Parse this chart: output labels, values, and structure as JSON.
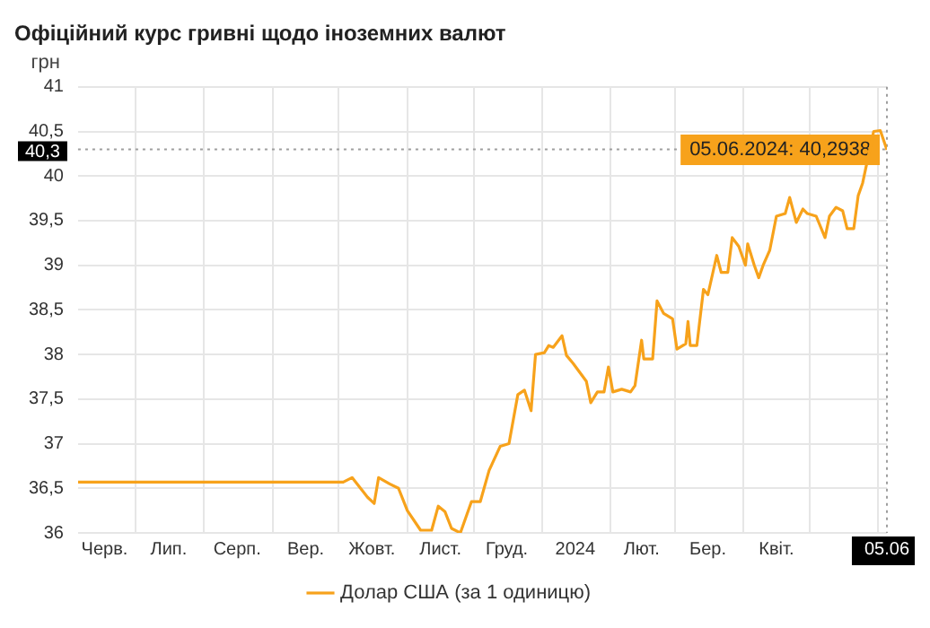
{
  "chart_data": {
    "type": "line",
    "title": "Офіційний курс гривні щодо іноземних валют",
    "ylabel": "грн",
    "xlim": [
      "2023-06-05",
      "2024-06-05"
    ],
    "xticks": [
      {
        "value": "2023-06-17",
        "label": "Черв."
      },
      {
        "value": "2023-07-01",
        "label": null
      },
      {
        "value": "2023-07-16",
        "label": "Лип."
      },
      {
        "value": "2023-08-01",
        "label": null
      },
      {
        "value": "2023-08-16",
        "label": "Серп."
      },
      {
        "value": "2023-09-01",
        "label": null
      },
      {
        "value": "2023-09-16",
        "label": "Вер."
      },
      {
        "value": "2023-10-01",
        "label": null
      },
      {
        "value": "2023-10-16",
        "label": "Жовт."
      },
      {
        "value": "2023-11-01",
        "label": null
      },
      {
        "value": "2023-11-16",
        "label": "Лист."
      },
      {
        "value": "2023-12-01",
        "label": null
      },
      {
        "value": "2023-12-16",
        "label": "Груд."
      },
      {
        "value": "2024-01-01",
        "label": null
      },
      {
        "value": "2024-01-16",
        "label": "2024"
      },
      {
        "value": "2024-02-01",
        "label": null
      },
      {
        "value": "2024-02-15",
        "label": "Лют."
      },
      {
        "value": "2024-03-01",
        "label": null
      },
      {
        "value": "2024-03-16",
        "label": "Бер."
      },
      {
        "value": "2024-04-01",
        "label": null
      },
      {
        "value": "2024-04-16",
        "label": "Квіт."
      },
      {
        "value": "2024-05-01",
        "label": null
      },
      {
        "value": "2024-06-01",
        "label": null
      },
      {
        "value": "2024-06-05",
        "label": "05.06"
      }
    ],
    "ylim": [
      36,
      41
    ],
    "yticks": [
      {
        "value": 36,
        "label": "36"
      },
      {
        "value": 36.5,
        "label": "36,5"
      },
      {
        "value": 37,
        "label": "37"
      },
      {
        "value": 37.5,
        "label": "37,5"
      },
      {
        "value": 38,
        "label": "38"
      },
      {
        "value": 38.5,
        "label": "38,5"
      },
      {
        "value": 39,
        "label": "39"
      },
      {
        "value": 39.5,
        "label": "39,5"
      },
      {
        "value": 40,
        "label": "40"
      },
      {
        "value": 40.5,
        "label": "40,5"
      },
      {
        "value": 41,
        "label": "41"
      }
    ],
    "grid": true,
    "legend": "bottom",
    "marker": "none",
    "line_style": "solid",
    "series": [
      {
        "name": "Долар США (за 1 одиницю)",
        "color": "#f7a21b",
        "x": [
          "2023-06-05",
          "2023-10-03",
          "2023-10-07",
          "2023-10-14",
          "2023-10-17",
          "2023-10-19",
          "2023-10-24",
          "2023-10-28",
          "2023-11-01",
          "2023-11-07",
          "2023-11-12",
          "2023-11-15",
          "2023-11-18",
          "2023-11-21",
          "2023-11-25",
          "2023-11-30",
          "2023-12-04",
          "2023-12-08",
          "2023-12-13",
          "2023-12-17",
          "2023-12-21",
          "2023-12-24",
          "2023-12-27",
          "2023-12-29",
          "2024-01-02",
          "2024-01-04",
          "2024-01-06",
          "2024-01-10",
          "2024-01-12",
          "2024-01-15",
          "2024-01-18",
          "2024-01-21",
          "2024-01-23",
          "2024-01-26",
          "2024-01-29",
          "2024-01-31",
          "2024-02-02",
          "2024-02-06",
          "2024-02-10",
          "2024-02-12",
          "2024-02-15",
          "2024-02-16",
          "2024-02-20",
          "2024-02-22",
          "2024-02-25",
          "2024-02-29",
          "2024-03-02",
          "2024-03-06",
          "2024-03-07",
          "2024-03-08",
          "2024-03-11",
          "2024-03-14",
          "2024-03-16",
          "2024-03-20",
          "2024-03-22",
          "2024-03-25",
          "2024-03-27",
          "2024-03-30",
          "2024-04-02",
          "2024-04-03",
          "2024-04-06",
          "2024-04-08",
          "2024-04-10",
          "2024-04-13",
          "2024-04-16",
          "2024-04-20",
          "2024-04-22",
          "2024-04-25",
          "2024-04-28",
          "2024-04-30",
          "2024-05-04",
          "2024-05-08",
          "2024-05-10",
          "2024-05-13",
          "2024-05-16",
          "2024-05-18",
          "2024-05-21",
          "2024-05-23",
          "2024-05-25",
          "2024-05-28",
          "2024-05-30",
          "2024-06-02",
          "2024-06-05"
        ],
        "values": [
          36.57,
          36.57,
          36.62,
          36.4,
          36.33,
          36.62,
          36.55,
          36.5,
          36.25,
          36.03,
          36.03,
          36.3,
          36.24,
          36.05,
          36.0,
          36.35,
          36.35,
          36.7,
          36.97,
          37.0,
          37.55,
          37.6,
          37.37,
          38.0,
          38.02,
          38.1,
          38.08,
          38.21,
          37.99,
          37.9,
          37.8,
          37.7,
          37.46,
          37.58,
          37.58,
          37.86,
          37.58,
          37.61,
          37.58,
          37.65,
          38.16,
          37.95,
          37.95,
          38.6,
          38.46,
          38.4,
          38.06,
          38.12,
          38.37,
          38.1,
          38.1,
          38.73,
          38.67,
          39.11,
          38.92,
          38.92,
          39.31,
          39.21,
          39.0,
          39.24,
          39.0,
          38.86,
          39.0,
          39.17,
          39.55,
          39.58,
          39.76,
          39.48,
          39.63,
          39.58,
          39.55,
          39.31,
          39.55,
          39.65,
          39.61,
          39.41,
          39.41,
          39.78,
          39.92,
          40.27,
          40.5,
          40.51,
          40.2938
        ]
      }
    ],
    "ref_lines": [
      {
        "axis": "y",
        "value": 40.3,
        "label": "40,3",
        "color": "#9e9e9e",
        "line_style": "dotted"
      },
      {
        "axis": "x",
        "value": "2024-06-05",
        "color": "#9e9e9e",
        "line_style": "dotted"
      }
    ],
    "annotations": [
      {
        "text": "05.06.2024: 40,2938",
        "x": "2024-06-05",
        "y": 40.2938
      }
    ]
  }
}
